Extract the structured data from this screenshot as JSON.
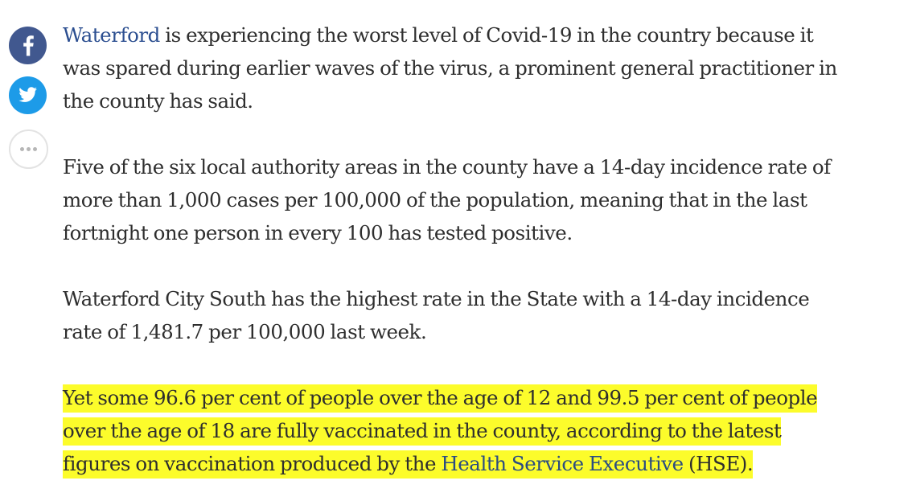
{
  "share": {
    "buttons": [
      {
        "network": "facebook",
        "icon": "facebook-icon",
        "color": "#41588f"
      },
      {
        "network": "twitter",
        "icon": "twitter-icon",
        "color": "#1d9be8"
      },
      {
        "network": "more",
        "icon": "more-options-icon",
        "color": "#ffffff"
      }
    ]
  },
  "article": {
    "paragraphs": [
      {
        "link_text": "Waterford",
        "text": " is experiencing the worst level of Covid-19 in the country because it was spared during earlier waves of the virus, a prominent general practitioner in the county has said."
      },
      {
        "text": "Five of the six local authority areas in the county have a 14-day incidence rate of more than 1,000 cases per 100,000 of the population, meaning that in the last fortnight one person in every 100 has tested positive."
      },
      {
        "text": "Waterford City South has the highest rate in the State with a 14-day incidence rate of 1,481.7 per 100,000 last week."
      },
      {
        "text_before": "Yet some 96.6 per cent of people over the age of 12 and 99.5 per cent of people over the age of 18 are fully vaccinated in the county, according to the latest figures on vaccination produced by the ",
        "link_text": "Health Service Executive",
        "text_after": " (HSE).",
        "highlight_color": "#fcfc2b"
      }
    ]
  }
}
